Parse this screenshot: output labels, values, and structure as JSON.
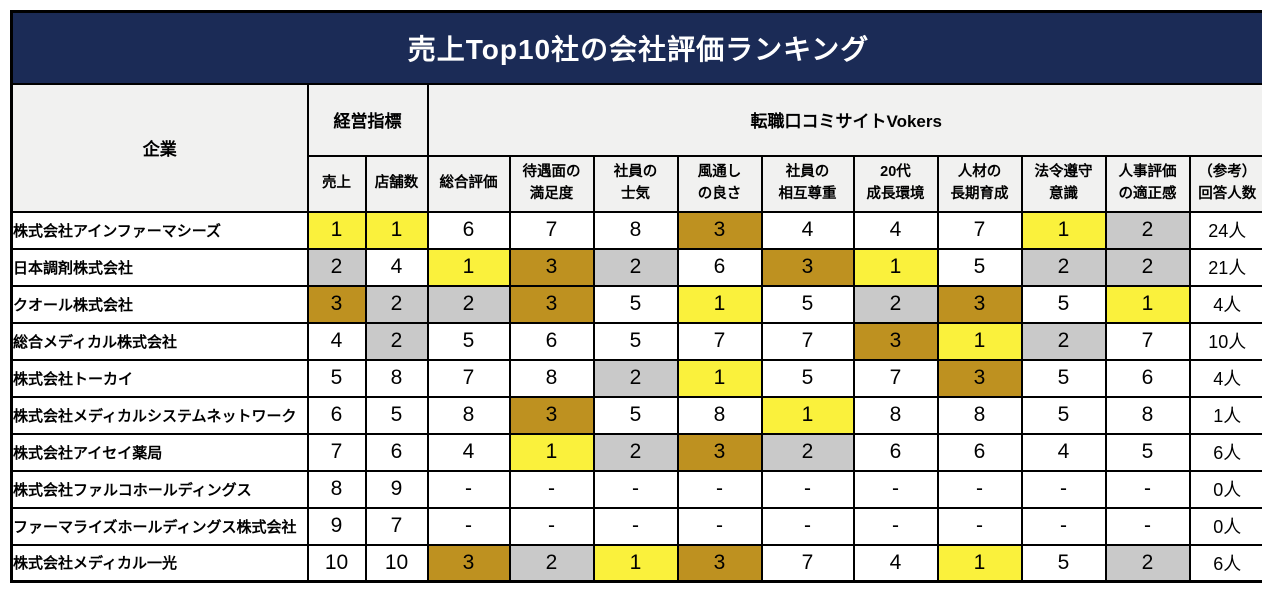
{
  "title": "売上Top10社の会社評価ランキング",
  "colors": {
    "title_bg": "#1B2B56",
    "title_text": "#FFFFFF",
    "header_bg": "#F1F1F0",
    "rank1_bg": "#FAF13C",
    "rank2_bg": "#C9C9C9",
    "rank3_bg": "#BE9120",
    "border_color": "#000000",
    "page_bg": "#FFFFFF"
  },
  "chart_data": {
    "type": "table",
    "title": "売上Top10社の会社評価ランキング",
    "corner_header": "企業",
    "group_headers": [
      {
        "label": "経営指標",
        "span": 2
      },
      {
        "label": "転職口コミサイトVokers",
        "span": 10
      }
    ],
    "columns": [
      "売上",
      "店舗数",
      "総合評価",
      "待遇面の\n満足度",
      "社員の\n士気",
      "風通し\nの良さ",
      "社員の\n相互尊重",
      "20代\n成長環境",
      "人材の\n長期育成",
      "法令遵守\n意識",
      "人事評価\nの適正感",
      "（参考）\n回答人数"
    ],
    "highlight_rule": {
      "1": "rank1",
      "2": "rank2",
      "3": "rank3"
    },
    "rows": [
      {
        "company": "株式会社アインファーマシーズ",
        "values": [
          "1",
          "1",
          "6",
          "7",
          "8",
          "3",
          "4",
          "4",
          "7",
          "1",
          "2",
          "24人"
        ]
      },
      {
        "company": "日本調剤株式会社",
        "values": [
          "2",
          "4",
          "1",
          "3",
          "2",
          "6",
          "3",
          "1",
          "5",
          "2",
          "2",
          "21人"
        ]
      },
      {
        "company": "クオール株式会社",
        "values": [
          "3",
          "2",
          "2",
          "3",
          "5",
          "1",
          "5",
          "2",
          "3",
          "5",
          "1",
          "4人"
        ]
      },
      {
        "company": "総合メディカル株式会社",
        "values": [
          "4",
          "2",
          "5",
          "6",
          "5",
          "7",
          "7",
          "3",
          "1",
          "2",
          "7",
          "10人"
        ]
      },
      {
        "company": "株式会社トーカイ",
        "values": [
          "5",
          "8",
          "7",
          "8",
          "2",
          "1",
          "5",
          "7",
          "3",
          "5",
          "6",
          "4人"
        ]
      },
      {
        "company": "株式会社メディカルシステムネットワーク",
        "values": [
          "6",
          "5",
          "8",
          "3",
          "5",
          "8",
          "1",
          "8",
          "8",
          "5",
          "8",
          "1人"
        ]
      },
      {
        "company": "株式会社アイセイ薬局",
        "values": [
          "7",
          "6",
          "4",
          "1",
          "2",
          "3",
          "2",
          "6",
          "6",
          "4",
          "5",
          "6人"
        ]
      },
      {
        "company": "株式会社ファルコホールディングス",
        "values": [
          "8",
          "9",
          "-",
          "-",
          "-",
          "-",
          "-",
          "-",
          "-",
          "-",
          "-",
          "0人"
        ]
      },
      {
        "company": "ファーマライズホールディングス株式会社",
        "values": [
          "9",
          "7",
          "-",
          "-",
          "-",
          "-",
          "-",
          "-",
          "-",
          "-",
          "-",
          "0人"
        ]
      },
      {
        "company": "株式会社メディカル一光",
        "values": [
          "10",
          "10",
          "3",
          "2",
          "1",
          "3",
          "7",
          "4",
          "1",
          "5",
          "2",
          "6人"
        ]
      }
    ]
  }
}
